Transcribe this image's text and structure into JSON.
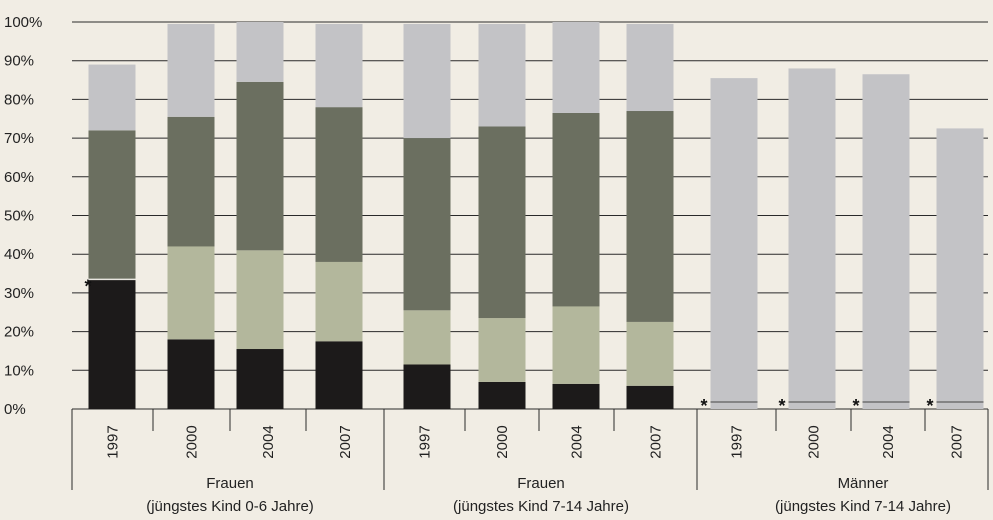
{
  "chart_data": {
    "type": "bar",
    "stacked": true,
    "ylim": [
      0,
      100
    ],
    "yticks": [
      "0%",
      "10%",
      "20%",
      "30%",
      "40%",
      "50%",
      "60%",
      "70%",
      "80%",
      "90%",
      "100%"
    ],
    "grid": true,
    "colors": [
      "#1c1a1a",
      "#b3b79c",
      "#6b6f60",
      "#c3c3c6"
    ],
    "groups": [
      {
        "label_line1": "Frauen",
        "label_line2": "(jüngstes Kind 0-6 Jahre)",
        "categories": [
          "1997",
          "2000",
          "2004",
          "2007"
        ],
        "series": [
          {
            "values": [
              33.5,
              18,
              15.5,
              17.5
            ]
          },
          {
            "values": [
              0,
              24,
              25.5,
              20.5
            ]
          },
          {
            "values": [
              38.5,
              33.5,
              43.5,
              40
            ]
          },
          {
            "values": [
              17,
              24,
              15.5,
              21.5
            ]
          }
        ]
      },
      {
        "label_line1": "Frauen",
        "label_line2": "(jüngstes Kind 7-14 Jahre)",
        "categories": [
          "1997",
          "2000",
          "2004",
          "2007"
        ],
        "series": [
          {
            "values": [
              11.5,
              7,
              6.5,
              6
            ]
          },
          {
            "values": [
              14,
              16.5,
              20,
              16.5
            ]
          },
          {
            "values": [
              44.5,
              49.5,
              50,
              54.5
            ]
          },
          {
            "values": [
              29.5,
              26.5,
              23.5,
              22.5
            ]
          }
        ]
      },
      {
        "label_line1": "Männer",
        "label_line2": "(jüngstes Kind 7-14 Jahre)",
        "categories": [
          "1997",
          "2000",
          "2004",
          "2007"
        ],
        "series": [
          {
            "values": [
              0,
              0,
              0,
              0
            ]
          },
          {
            "values": [
              0,
              0,
              0,
              0
            ]
          },
          {
            "values": [
              0,
              0,
              0,
              0
            ]
          },
          {
            "values": [
              85.5,
              88,
              86.5,
              72.5
            ]
          }
        ]
      }
    ],
    "annotation_marker": "*"
  }
}
